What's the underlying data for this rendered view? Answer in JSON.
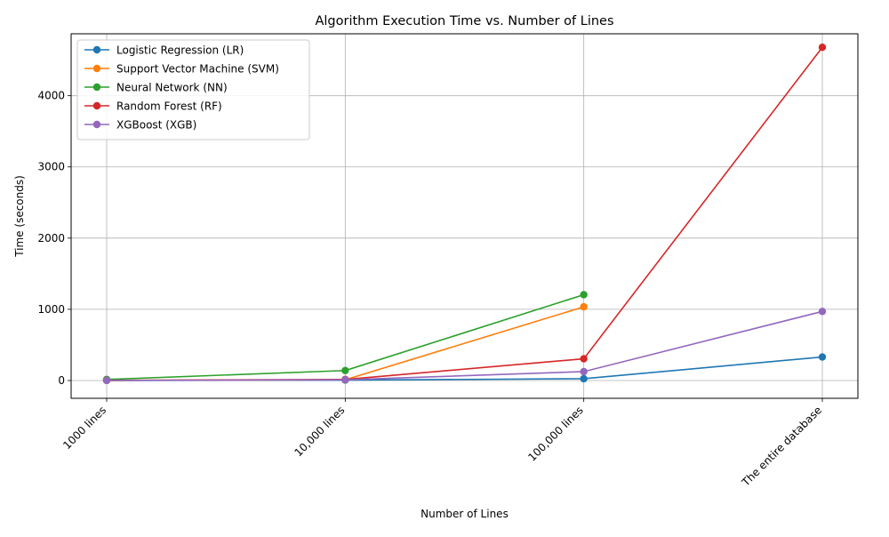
{
  "chart_data": {
    "type": "line",
    "title": "Algorithm Execution Time vs. Number of Lines",
    "xlabel": "Number of Lines",
    "ylabel": "Time (seconds)",
    "categories": [
      "1000 lines",
      "10,000 lines",
      "100,000 lines",
      "The entire database"
    ],
    "ylim": [
      -250,
      4870
    ],
    "yticks": [
      0,
      1000,
      2000,
      3000,
      4000
    ],
    "grid": true,
    "legend_position": "top-left",
    "series": [
      {
        "name": "Logistic Regression (LR)",
        "color": "#1f77b4",
        "values": [
          1,
          5,
          25,
          330
        ]
      },
      {
        "name": "Support Vector Machine (SVM)",
        "color": "#ff7f0e",
        "values": [
          2,
          10,
          1035,
          null
        ]
      },
      {
        "name": "Neural Network (NN)",
        "color": "#2ca02c",
        "values": [
          15,
          140,
          1205,
          null
        ]
      },
      {
        "name": "Random Forest (RF)",
        "color": "#d62728",
        "values": [
          2,
          15,
          305,
          4680
        ]
      },
      {
        "name": "XGBoost (XGB)",
        "color": "#9467bd",
        "values": [
          1,
          10,
          125,
          970
        ]
      }
    ]
  }
}
